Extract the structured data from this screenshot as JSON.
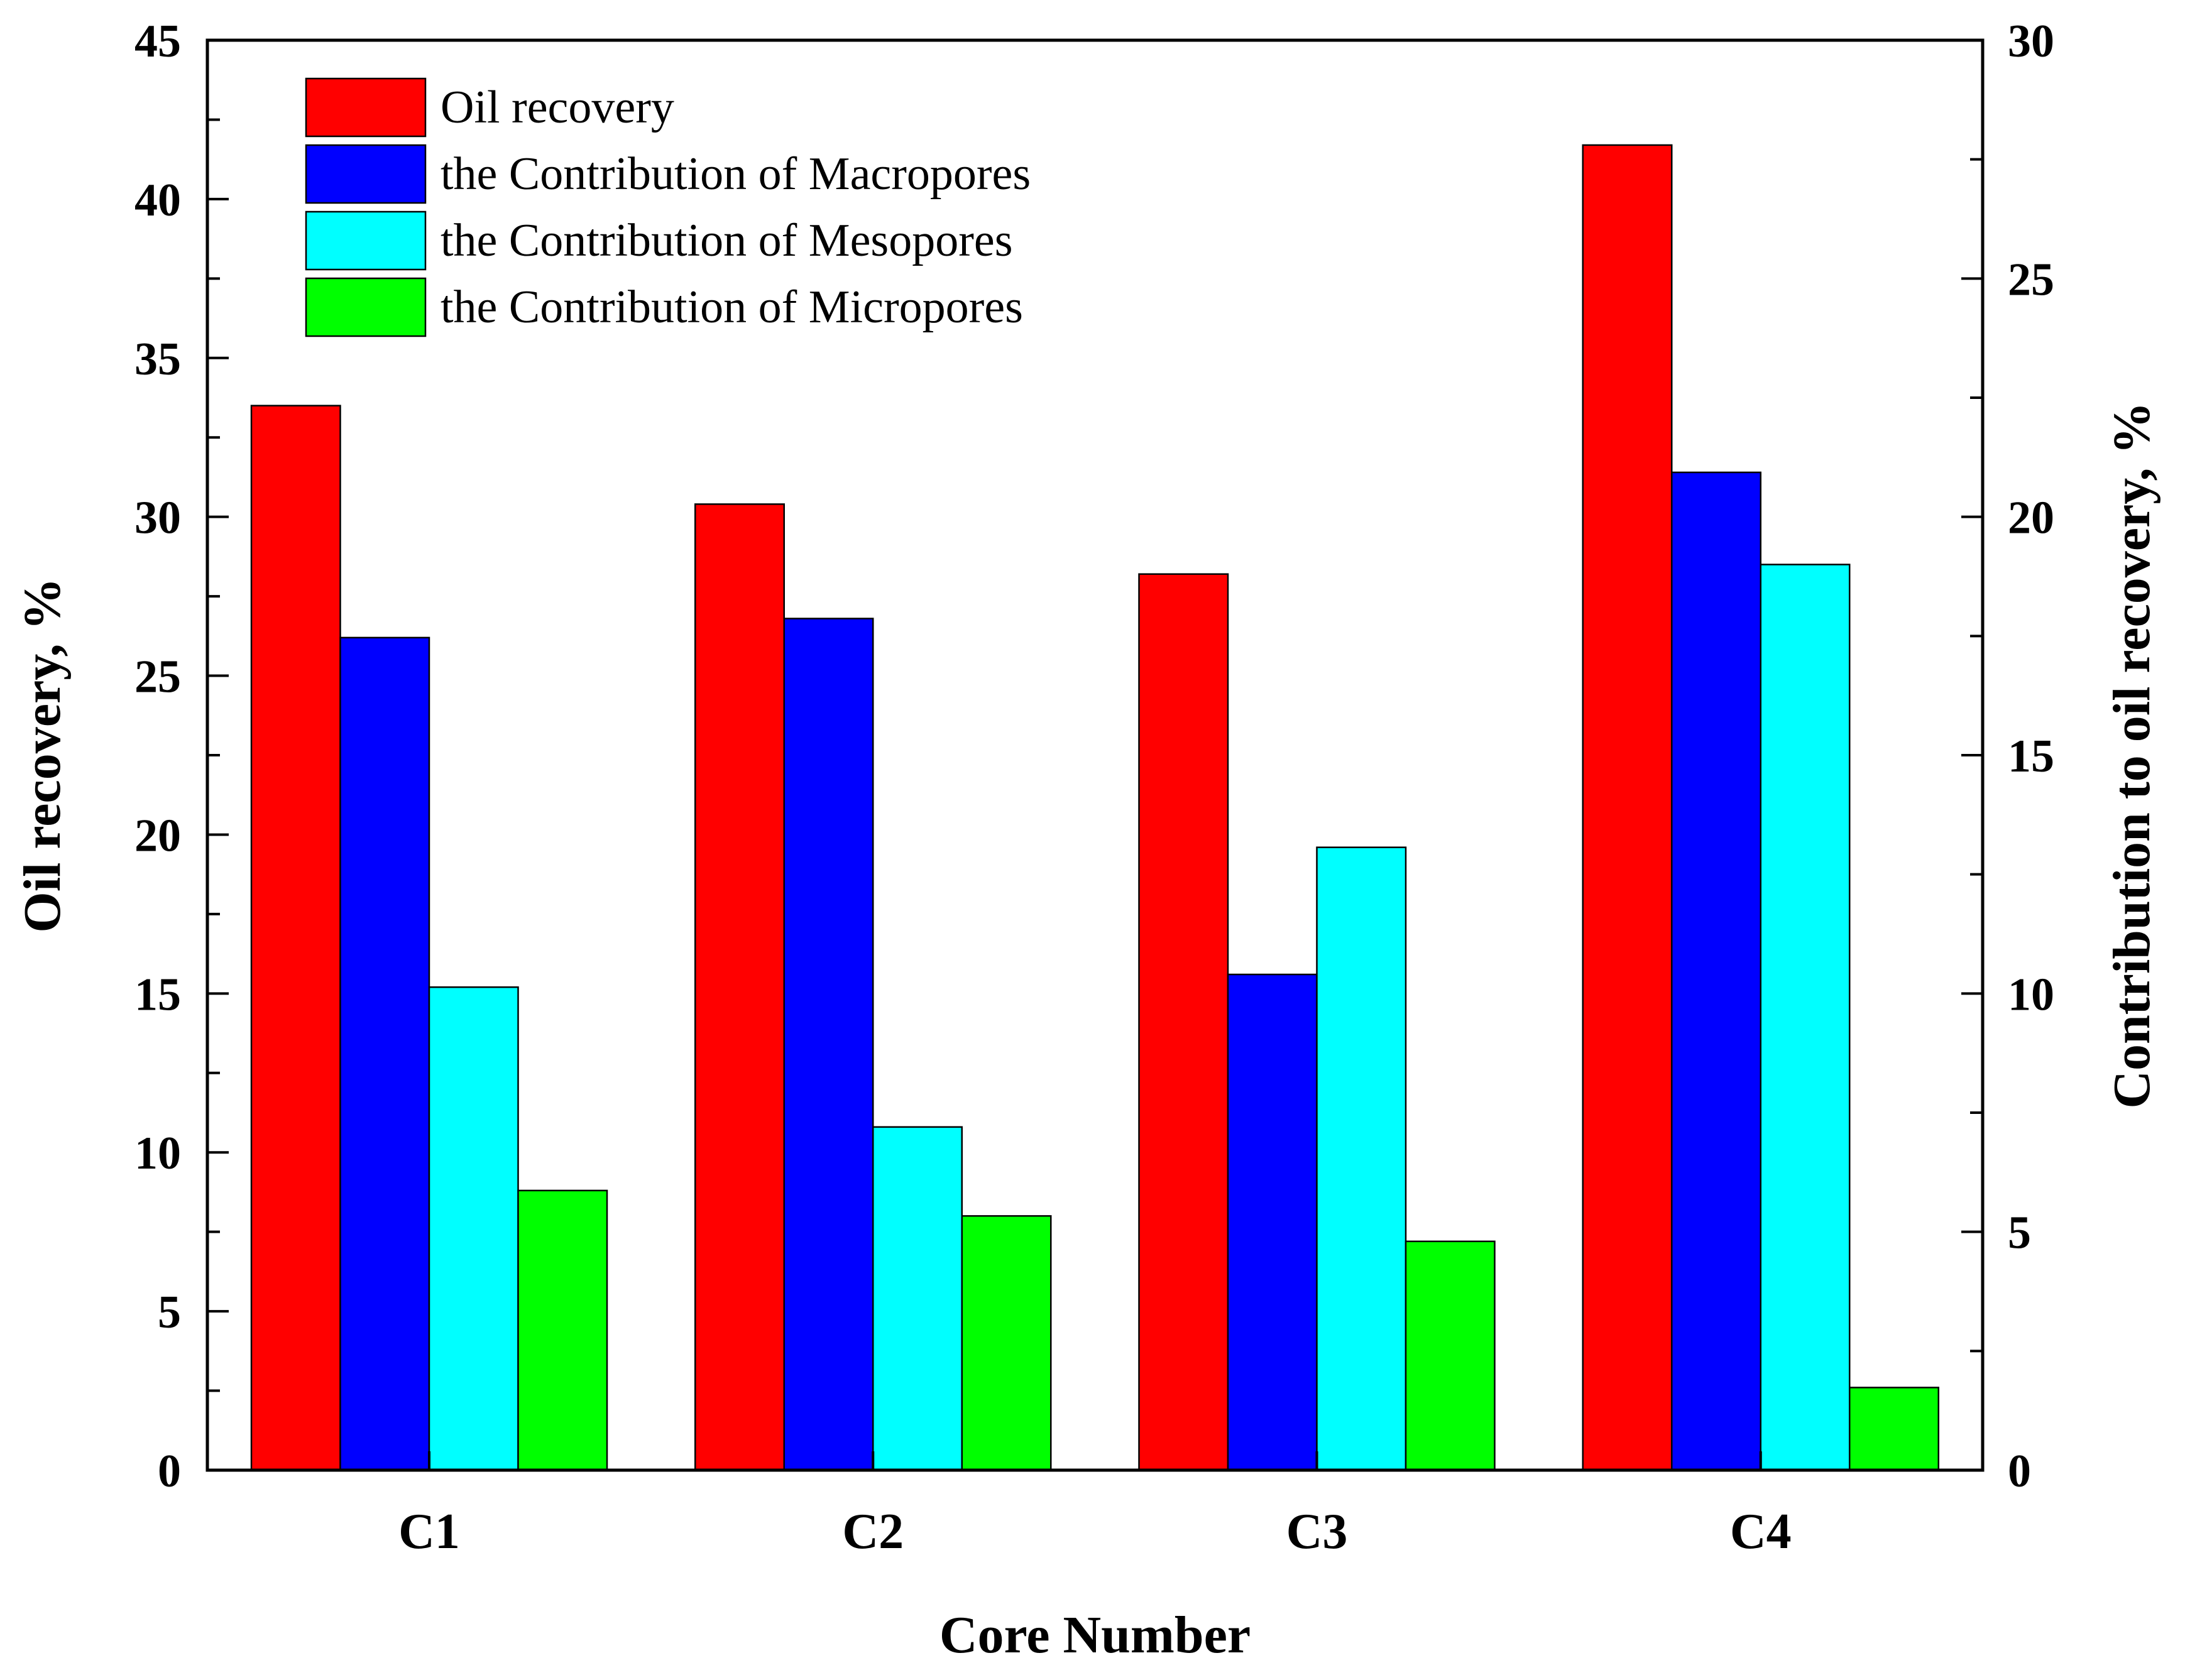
{
  "chart_data": {
    "type": "bar",
    "title": "",
    "categories": [
      "C1",
      "C2",
      "C3",
      "C4"
    ],
    "xlabel": "Core Number",
    "ylabel": "Oil recovery, %",
    "y2label": "Contribution to oil recovery, %",
    "ylim": [
      0,
      45
    ],
    "y2lim": [
      0,
      30
    ],
    "yticks": [
      "0",
      "5",
      "10",
      "15",
      "20",
      "25",
      "30",
      "35",
      "40",
      "45"
    ],
    "y2ticks": [
      "0",
      "5",
      "10",
      "15",
      "20",
      "25",
      "30"
    ],
    "legend_position": "top-left",
    "series": [
      {
        "name": "Oil recovery",
        "axis": "left",
        "color": "#ff0000",
        "values": [
          33.5,
          30.4,
          28.2,
          41.7
        ]
      },
      {
        "name": "the Contribution of Macropores",
        "axis": "left",
        "color": "#0000ff",
        "values": [
          26.2,
          26.8,
          15.6,
          31.4
        ]
      },
      {
        "name": "the Contribution of Mesopores",
        "axis": "left",
        "color": "#00ffff",
        "values": [
          15.2,
          10.8,
          19.6,
          28.5
        ]
      },
      {
        "name": "the Contribution of Micropores",
        "axis": "left",
        "color": "#00ff00",
        "values": [
          8.8,
          8.0,
          7.2,
          2.6
        ]
      }
    ]
  }
}
